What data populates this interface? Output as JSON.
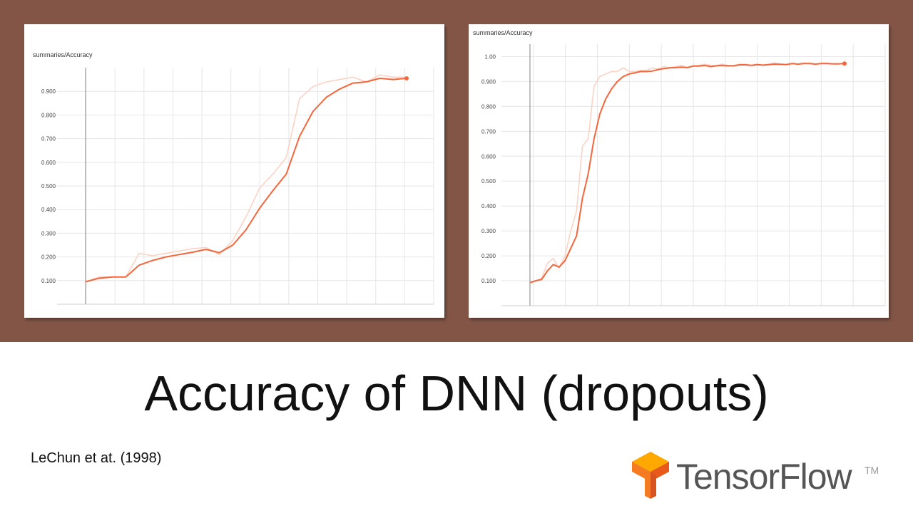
{
  "slide": {
    "title": "Accuracy of DNN (dropouts)",
    "citation": "LeChun et at. (1998)",
    "logo_text": "TensorFlow",
    "logo_tm": "TM",
    "background_color": "#825547",
    "accent_color": "#f4663b",
    "raw_color": "#fbd3c5"
  },
  "chart_data": [
    {
      "type": "line",
      "title": "summaries/Accuracy",
      "ylim": [
        0.0,
        1.0
      ],
      "yticks": [
        "0.100",
        "0.200",
        "0.300",
        "0.400",
        "0.500",
        "0.600",
        "0.700",
        "0.800",
        "0.900"
      ],
      "grid": true,
      "x": [
        0,
        1,
        2,
        3,
        4,
        5,
        6,
        7,
        8,
        9,
        10,
        11,
        12,
        13,
        14,
        15,
        16,
        17,
        18,
        19,
        20,
        21,
        22,
        23,
        24
      ],
      "series": [
        {
          "role": "raw",
          "values": [
            0.095,
            0.115,
            0.115,
            0.115,
            0.215,
            0.205,
            0.215,
            0.225,
            0.235,
            0.24,
            0.21,
            0.27,
            0.37,
            0.49,
            0.55,
            0.62,
            0.87,
            0.92,
            0.94,
            0.95,
            0.96,
            0.94,
            0.97,
            0.96,
            0.96
          ]
        },
        {
          "role": "smoothed",
          "values": [
            0.095,
            0.11,
            0.115,
            0.115,
            0.165,
            0.185,
            0.2,
            0.21,
            0.22,
            0.232,
            0.218,
            0.25,
            0.315,
            0.405,
            0.48,
            0.55,
            0.71,
            0.815,
            0.875,
            0.91,
            0.935,
            0.94,
            0.955,
            0.95,
            0.955
          ]
        }
      ]
    },
    {
      "type": "line",
      "title": "summaries/Accuracy",
      "ylim": [
        0.0,
        1.05
      ],
      "yticks": [
        "0.100",
        "0.200",
        "0.300",
        "0.400",
        "0.500",
        "0.600",
        "0.700",
        "0.800",
        "0.900",
        "1.00"
      ],
      "grid": true,
      "x": [
        0,
        1,
        2,
        3,
        4,
        5,
        6,
        7,
        8,
        9,
        10,
        11,
        12,
        13,
        14,
        15,
        16,
        17,
        18,
        19,
        20,
        21,
        22,
        23,
        24,
        25,
        26,
        27,
        28,
        29,
        30,
        31,
        32,
        33,
        34,
        35,
        36,
        37,
        38,
        39,
        40,
        41,
        42,
        43,
        44,
        45,
        46,
        47,
        48,
        49,
        50,
        51,
        52,
        53,
        54
      ],
      "series": [
        {
          "role": "raw",
          "values": [
            0.09,
            0.1,
            0.11,
            0.17,
            0.19,
            0.15,
            0.2,
            0.3,
            0.38,
            0.64,
            0.67,
            0.88,
            0.92,
            0.93,
            0.94,
            0.94,
            0.955,
            0.94,
            0.94,
            0.945,
            0.945,
            0.955,
            0.95,
            0.96,
            0.955,
            0.96,
            0.965,
            0.955,
            0.965,
            0.965,
            0.97,
            0.965,
            0.965,
            0.97,
            0.965,
            0.965,
            0.97,
            0.97,
            0.965,
            0.97,
            0.965,
            0.97,
            0.975,
            0.97,
            0.97,
            0.975,
            0.97,
            0.975,
            0.975,
            0.97,
            0.975,
            0.975,
            0.97,
            0.97,
            0.975
          ]
        },
        {
          "role": "smoothed",
          "values": [
            0.092,
            0.1,
            0.105,
            0.14,
            0.165,
            0.155,
            0.18,
            0.23,
            0.28,
            0.43,
            0.53,
            0.67,
            0.77,
            0.83,
            0.87,
            0.9,
            0.92,
            0.93,
            0.935,
            0.94,
            0.94,
            0.942,
            0.948,
            0.952,
            0.955,
            0.956,
            0.958,
            0.956,
            0.962,
            0.962,
            0.965,
            0.96,
            0.963,
            0.965,
            0.963,
            0.963,
            0.967,
            0.967,
            0.965,
            0.968,
            0.966,
            0.968,
            0.97,
            0.969,
            0.968,
            0.972,
            0.97,
            0.972,
            0.972,
            0.97,
            0.972,
            0.972,
            0.971,
            0.971,
            0.972
          ]
        }
      ]
    }
  ]
}
